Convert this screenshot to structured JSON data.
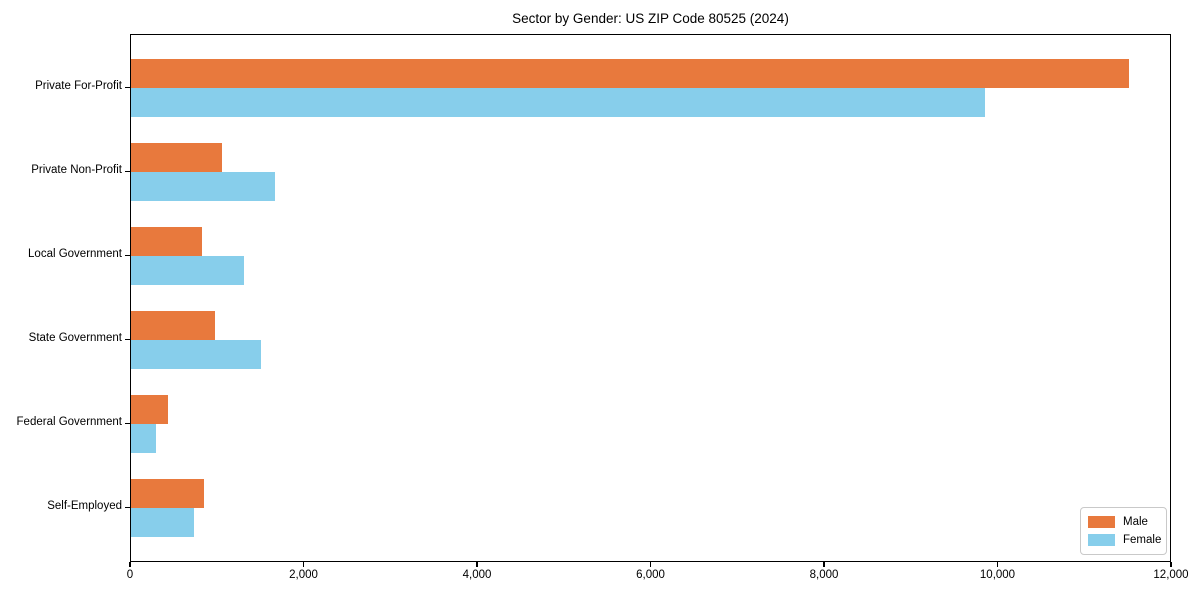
{
  "chart_data": {
    "type": "bar",
    "orientation": "horizontal",
    "title": "Sector by Gender: US ZIP Code 80525 (2024)",
    "categories": [
      "Private For-Profit",
      "Private Non-Profit",
      "Local Government",
      "State Government",
      "Federal Government",
      "Self-Employed"
    ],
    "series": [
      {
        "name": "Male",
        "color": "#E8793D",
        "values": [
          11500,
          1050,
          820,
          970,
          430,
          840
        ]
      },
      {
        "name": "Female",
        "color": "#87CEEB",
        "values": [
          9850,
          1660,
          1300,
          1500,
          290,
          730
        ]
      }
    ],
    "xlabel": "",
    "ylabel": "",
    "xlim": [
      0,
      12000
    ],
    "x_ticks": [
      0,
      2000,
      4000,
      6000,
      8000,
      10000,
      12000
    ],
    "x_tick_labels": [
      "0",
      "2,000",
      "4,000",
      "6,000",
      "8,000",
      "10,000",
      "12,000"
    ],
    "grid": false,
    "legend_position": "lower right",
    "colors": {
      "male_bar": "#E8793D",
      "female_bar": "#87CEEB",
      "axes_border": "#000000",
      "legend_border": "#c9c9c9",
      "background": "#ffffff"
    }
  }
}
